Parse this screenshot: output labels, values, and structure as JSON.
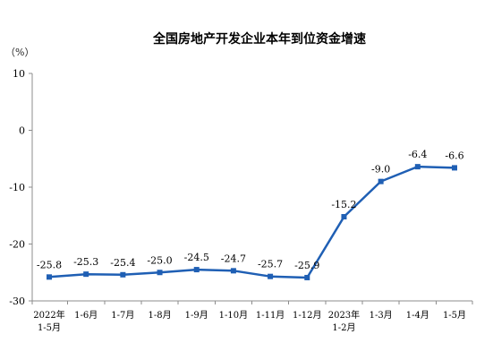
{
  "chart_data": {
    "type": "line",
    "title": "全国房地产开发企业本年到位资金增速",
    "unit_label": "（%）",
    "xlabel": "",
    "ylabel": "",
    "ylim": [
      -30,
      10
    ],
    "yticks": [
      "10",
      "0",
      "-10",
      "-20",
      "-30"
    ],
    "categories": [
      [
        "2022年",
        "1-5月"
      ],
      [
        "1-6月"
      ],
      [
        "1-7月"
      ],
      [
        "1-8月"
      ],
      [
        "1-9月"
      ],
      [
        "1-10月"
      ],
      [
        "1-11月"
      ],
      [
        "1-12月"
      ],
      [
        "2023年",
        "1-2月"
      ],
      [
        "1-3月"
      ],
      [
        "1-4月"
      ],
      [
        "1-5月"
      ]
    ],
    "series": [
      {
        "values": [
          -25.8,
          -25.3,
          -25.4,
          -25.0,
          -24.5,
          -24.7,
          -25.7,
          -25.9,
          -15.2,
          -9.0,
          -6.4,
          -6.6
        ],
        "labels": [
          "-25.8",
          "-25.3",
          "-25.4",
          "-25.0",
          "-24.5",
          "-24.7",
          "-25.7",
          "-25.9",
          "-15.2",
          "-9.0",
          "-6.4",
          "-6.6"
        ],
        "color": "#1f5fb4"
      }
    ],
    "grid": false,
    "legend": "none"
  }
}
